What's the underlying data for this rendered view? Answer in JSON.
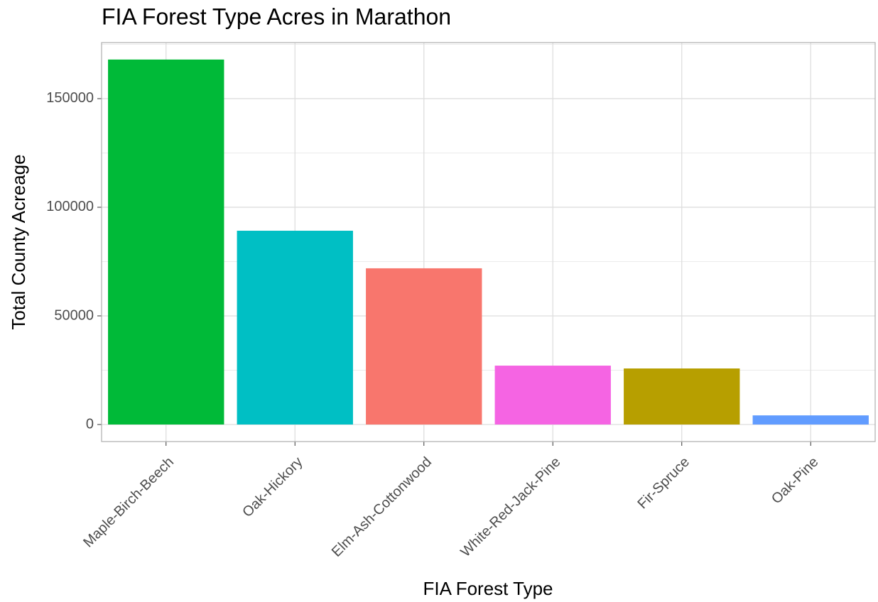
{
  "chart_data": {
    "type": "bar",
    "title": "FIA Forest Type Acres in Marathon",
    "x_label": "FIA Forest Type",
    "y_label": "Total County Acreage",
    "categories": [
      "Maple-Birch-Beech",
      "Oak-Hickory",
      "Elm-Ash-Cottonwood",
      "White-Red-Jack-Pine",
      "Fir-Spruce",
      "Oak-Pine"
    ],
    "values": [
      168000,
      89200,
      71900,
      27100,
      25800,
      4200
    ],
    "colors": [
      "#00BA38",
      "#00BFC4",
      "#F8766D",
      "#F564E3",
      "#B79F00",
      "#619CFF"
    ],
    "ylim": [
      -7850,
      175800
    ],
    "yticks": [
      0,
      50000,
      100000,
      150000
    ],
    "grid": true
  }
}
